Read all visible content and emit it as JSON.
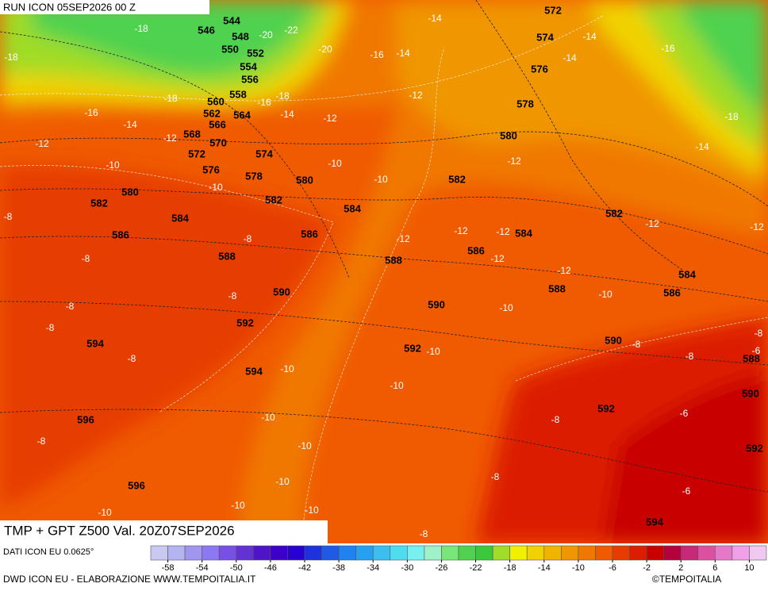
{
  "header": {
    "run": "RUN ICON 05SEP2026 00 Z"
  },
  "map": {
    "title": "TMP + GPT Z500 Val. 20Z07SEP2026",
    "geopotential_labels": [
      544,
      546,
      548,
      550,
      552,
      554,
      556,
      558,
      560,
      562,
      564,
      566,
      568,
      570,
      572,
      574,
      576,
      578,
      580,
      582,
      584,
      586,
      588,
      590,
      592,
      594,
      594,
      596,
      596,
      580,
      582,
      584,
      586,
      572,
      574,
      576,
      578,
      580,
      582,
      584,
      586,
      588,
      590,
      592,
      588,
      582,
      584,
      586,
      590,
      592,
      588,
      590,
      592,
      594
    ],
    "temperature_labels": [
      -18,
      -20,
      -22,
      -18,
      -20,
      -16,
      -14,
      -14,
      -18,
      -16,
      -18,
      -16,
      -14,
      -14,
      -12,
      -12,
      -12,
      -12,
      -10,
      -10,
      -10,
      -10,
      -12,
      -14,
      -14,
      -16,
      -18,
      -14,
      -12,
      -12,
      -12,
      -12,
      -12,
      -12,
      -12,
      -8,
      -8,
      -8,
      -8,
      -8,
      -8,
      -8,
      -10,
      -10,
      -10,
      -10,
      -10,
      -10,
      -10,
      -10,
      -10,
      -10,
      -10,
      -8,
      -8,
      -8,
      -8,
      -8,
      -6,
      -6,
      -6,
      -8,
      -8
    ]
  },
  "colorbar": {
    "lim": [
      -60,
      12
    ],
    "ticks": [
      -58,
      -54,
      -50,
      -46,
      -42,
      -38,
      -34,
      -30,
      -26,
      -22,
      -18,
      -14,
      -10,
      -6,
      -2,
      2,
      6,
      10
    ],
    "colors": [
      "#c8c8f0",
      "#b4b4f0",
      "#a096f0",
      "#8c78f0",
      "#7850e6",
      "#6432d2",
      "#5014c8",
      "#3c00c8",
      "#2800d2",
      "#1e32dc",
      "#1e5ae6",
      "#1e82f0",
      "#28a0f0",
      "#3cbef0",
      "#50dcf0",
      "#78f0f0",
      "#a0f0c8",
      "#78e678",
      "#50d250",
      "#3cc83c",
      "#a0dc28",
      "#f0f000",
      "#f0d200",
      "#f0b400",
      "#f09600",
      "#f07800",
      "#f05a00",
      "#e63c00",
      "#dc1e00",
      "#c80000",
      "#b4003c",
      "#c82878",
      "#dc50a0",
      "#e678c8",
      "#f0a0e6",
      "#f0c8f0"
    ]
  },
  "footer": {
    "source": "DATI ICON EU 0.0625°",
    "credit": "DWD ICON EU - ELABORAZIONE WWW.TEMPOITALIA.IT",
    "copyright": "©TEMPOITALIA"
  }
}
